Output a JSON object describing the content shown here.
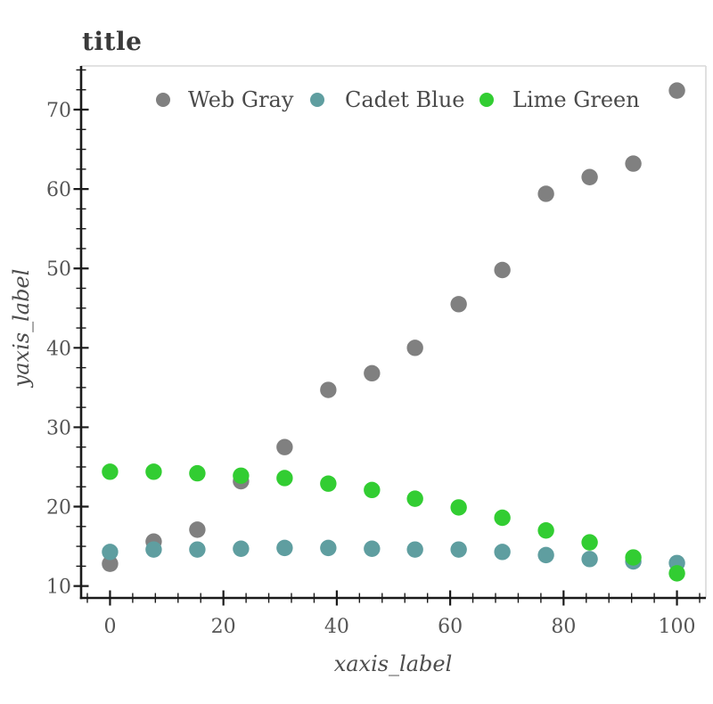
{
  "chart_data": {
    "type": "scatter",
    "title": "title",
    "xlabel": "xaxis_label",
    "ylabel": "yaxis_label",
    "x_ticks": [
      0,
      20,
      40,
      60,
      80,
      100
    ],
    "y_ticks": [
      10,
      20,
      30,
      40,
      50,
      60,
      70
    ],
    "x_minor_step": 4,
    "y_minor_step": 2.5,
    "xlim": [
      -5.1,
      105.1
    ],
    "ylim": [
      8.5,
      75.5
    ],
    "grid": false,
    "legend_position": "top-center-horizontal",
    "x": [
      0,
      7.7,
      15.4,
      23.1,
      30.8,
      38.5,
      46.2,
      53.8,
      61.5,
      69.2,
      76.9,
      84.6,
      92.3,
      100
    ],
    "series": [
      {
        "name": "Web Gray",
        "color": "#808080",
        "values": [
          12.8,
          15.6,
          17.1,
          23.2,
          27.5,
          34.7,
          36.8,
          40.0,
          45.5,
          49.8,
          59.4,
          61.5,
          63.2,
          72.4
        ]
      },
      {
        "name": "Cadet Blue",
        "color": "#5F9EA0",
        "values": [
          14.3,
          14.6,
          14.6,
          14.7,
          14.8,
          14.8,
          14.7,
          14.6,
          14.6,
          14.3,
          13.9,
          13.4,
          13.1,
          12.9
        ]
      },
      {
        "name": "Lime Green",
        "color": "#32CD32",
        "values": [
          24.4,
          24.4,
          24.2,
          23.9,
          23.6,
          22.9,
          22.1,
          21.0,
          19.9,
          18.6,
          17.0,
          15.5,
          13.6,
          11.6
        ]
      }
    ],
    "style": {
      "axis_color": "#1a1a1a",
      "inactive_spine_color": "#d9d9d9",
      "tick_label_color": "#555555",
      "legend_text_color": "#4a4a4a",
      "title_color": "#3a3a3a",
      "background": "#ffffff"
    }
  }
}
